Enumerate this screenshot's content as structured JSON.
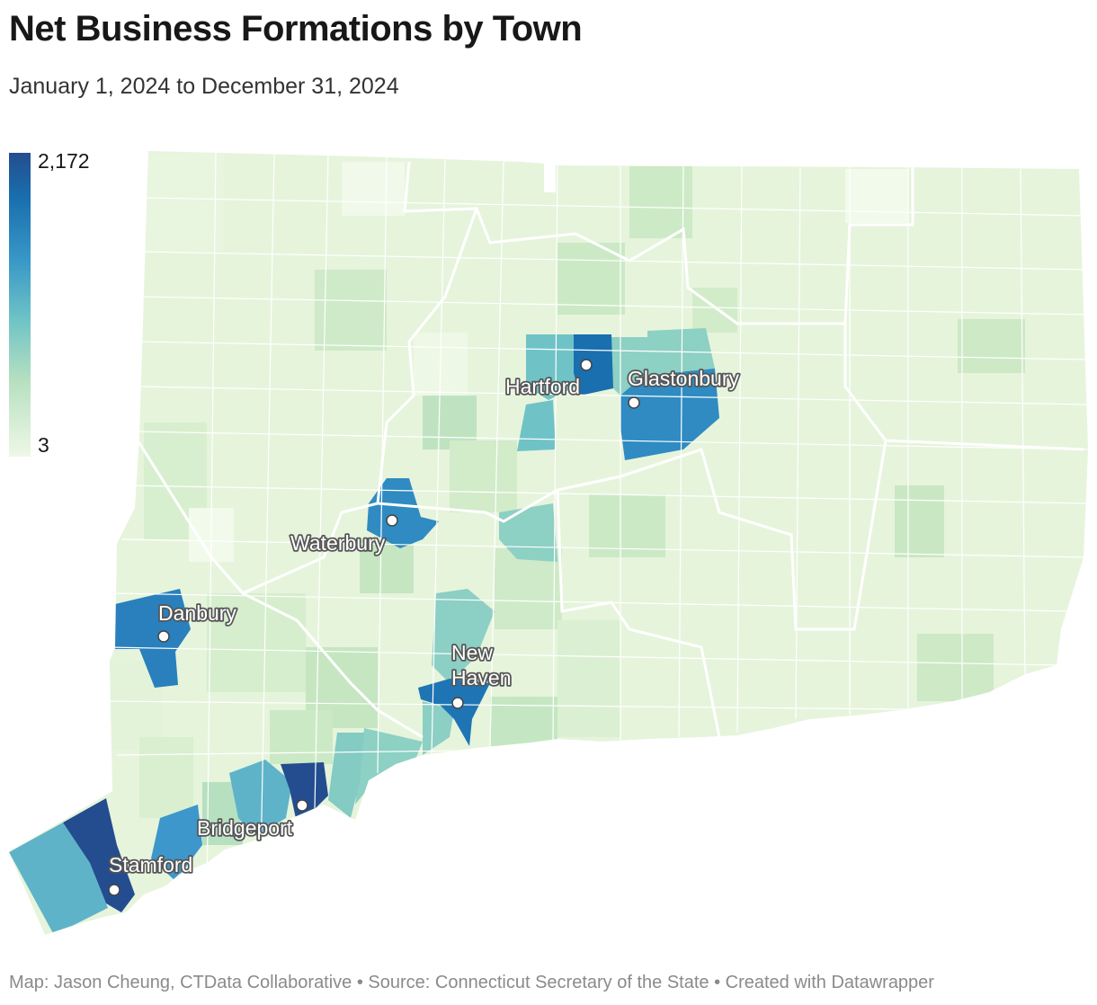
{
  "header": {
    "title": "Net Business Formations by Town",
    "subtitle": "January 1, 2024 to December 31, 2024"
  },
  "legend": {
    "max_label": "2,172",
    "min_label": "3",
    "color_low": "#eef8e6",
    "color_high": "#234d8f"
  },
  "towns": [
    {
      "name": "Stamford",
      "label_lines": [
        "Stamford"
      ],
      "color": "#234d8f"
    },
    {
      "name": "Bridgeport",
      "label_lines": [
        "Bridgeport"
      ],
      "color": "#234d8f"
    },
    {
      "name": "Hartford",
      "label_lines": [
        "Hartford"
      ],
      "color": "#1a6fae"
    },
    {
      "name": "Glastonbury",
      "label_lines": [
        "Glastonbury"
      ],
      "color": "#2f8bc2"
    },
    {
      "name": "Waterbury",
      "label_lines": [
        "Waterbury"
      ],
      "color": "#2f8bc2"
    },
    {
      "name": "Danbury",
      "label_lines": [
        "Danbury"
      ],
      "color": "#2980bd"
    },
    {
      "name": "New Haven",
      "label_lines": [
        "New",
        "Haven"
      ],
      "color": "#1f75b4"
    }
  ],
  "footer": "Map: Jason Cheung, CTData Collaborative • Source: Connecticut Secretary of the State • Created with Datawrapper"
}
